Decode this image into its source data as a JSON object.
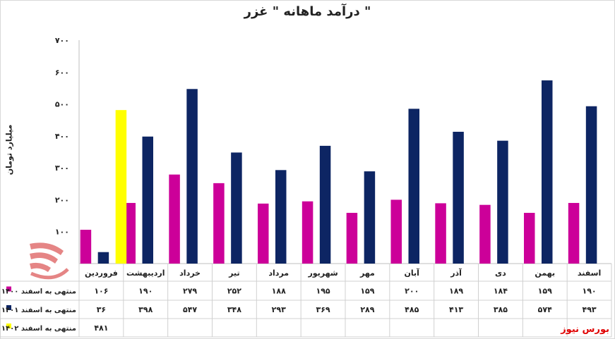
{
  "chart_data": {
    "type": "bar",
    "title": "درآمد ماهانه \" غزر \"",
    "ylabel": "میلیارد تومان",
    "ylim": [
      0,
      700
    ],
    "yticks": [
      0,
      100,
      200,
      300,
      400,
      500,
      600,
      700
    ],
    "ytick_labels": [
      "",
      "۱۰۰",
      "۲۰۰",
      "۳۰۰",
      "۴۰۰",
      "۵۰۰",
      "۶۰۰",
      "۷۰۰"
    ],
    "grid": false,
    "legend_position": "bottom-left table",
    "categories": [
      "فروردین",
      "اردیبهشت",
      "خرداد",
      "تیر",
      "مرداد",
      "شهریور",
      "مهر",
      "آبان",
      "آذر",
      "دی",
      "بهمن",
      "اسفند"
    ],
    "series": [
      {
        "name": "منتهی به اسفند ۱۴۰۰",
        "color": "#cc0099",
        "values": [
          106,
          190,
          279,
          252,
          188,
          195,
          159,
          200,
          189,
          184,
          159,
          190
        ],
        "labels": [
          "۱۰۶",
          "۱۹۰",
          "۲۷۹",
          "۲۵۲",
          "۱۸۸",
          "۱۹۵",
          "۱۵۹",
          "۲۰۰",
          "۱۸۹",
          "۱۸۴",
          "۱۵۹",
          "۱۹۰"
        ]
      },
      {
        "name": "منتهی به اسفند ۱۴۰۱",
        "color": "#0d2563",
        "values": [
          36,
          398,
          547,
          348,
          293,
          369,
          289,
          485,
          413,
          385,
          574,
          493
        ],
        "labels": [
          "۳۶",
          "۳۹۸",
          "۵۴۷",
          "۳۴۸",
          "۲۹۳",
          "۳۶۹",
          "۲۸۹",
          "۴۸۵",
          "۴۱۳",
          "۳۸۵",
          "۵۷۴",
          "۴۹۳"
        ]
      },
      {
        "name": "منتهی به اسفند ۱۴۰۲",
        "color": "#ffff00",
        "values": [
          481,
          null,
          null,
          null,
          null,
          null,
          null,
          null,
          null,
          null,
          null,
          null
        ],
        "labels": [
          "۴۸۱",
          "",
          "",
          "",
          "",
          "",
          "",
          "",
          "",
          "",
          "",
          ""
        ]
      }
    ]
  },
  "source": "بورس نیوز"
}
